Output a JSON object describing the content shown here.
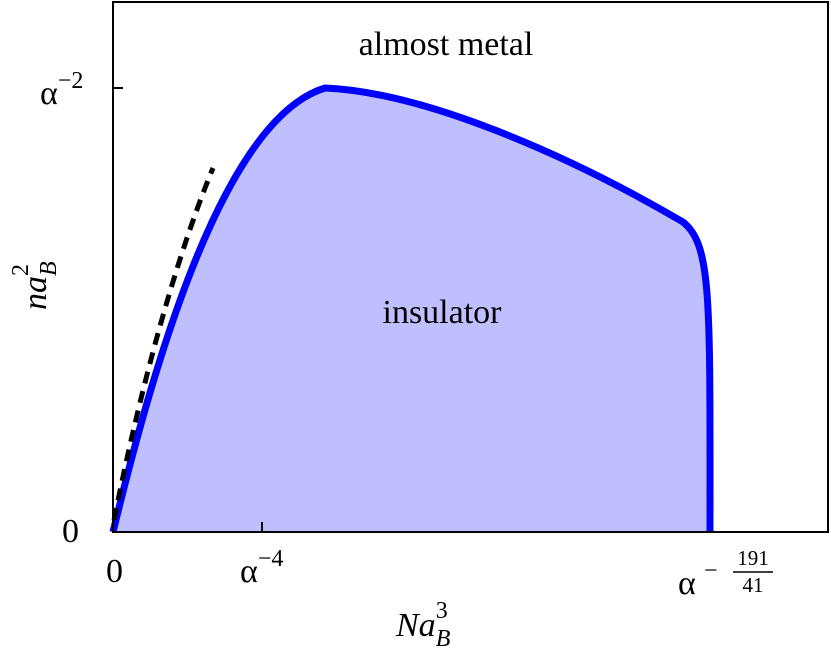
{
  "regions": {
    "upper": "almost metal",
    "lower": "insulator"
  },
  "y_axis": {
    "label": {
      "base": "na",
      "sup": "2",
      "sub": "B"
    },
    "ticks": [
      {
        "text": "0"
      },
      {
        "base": "α",
        "sup": "−2"
      }
    ]
  },
  "x_axis": {
    "label": {
      "base": "Na",
      "sup": "3",
      "sub": "B"
    },
    "ticks": [
      {
        "text": "0"
      },
      {
        "base": "α",
        "sup": "−4"
      },
      {
        "base": "α",
        "sign": "−",
        "num": "191",
        "den": "41"
      }
    ]
  }
}
